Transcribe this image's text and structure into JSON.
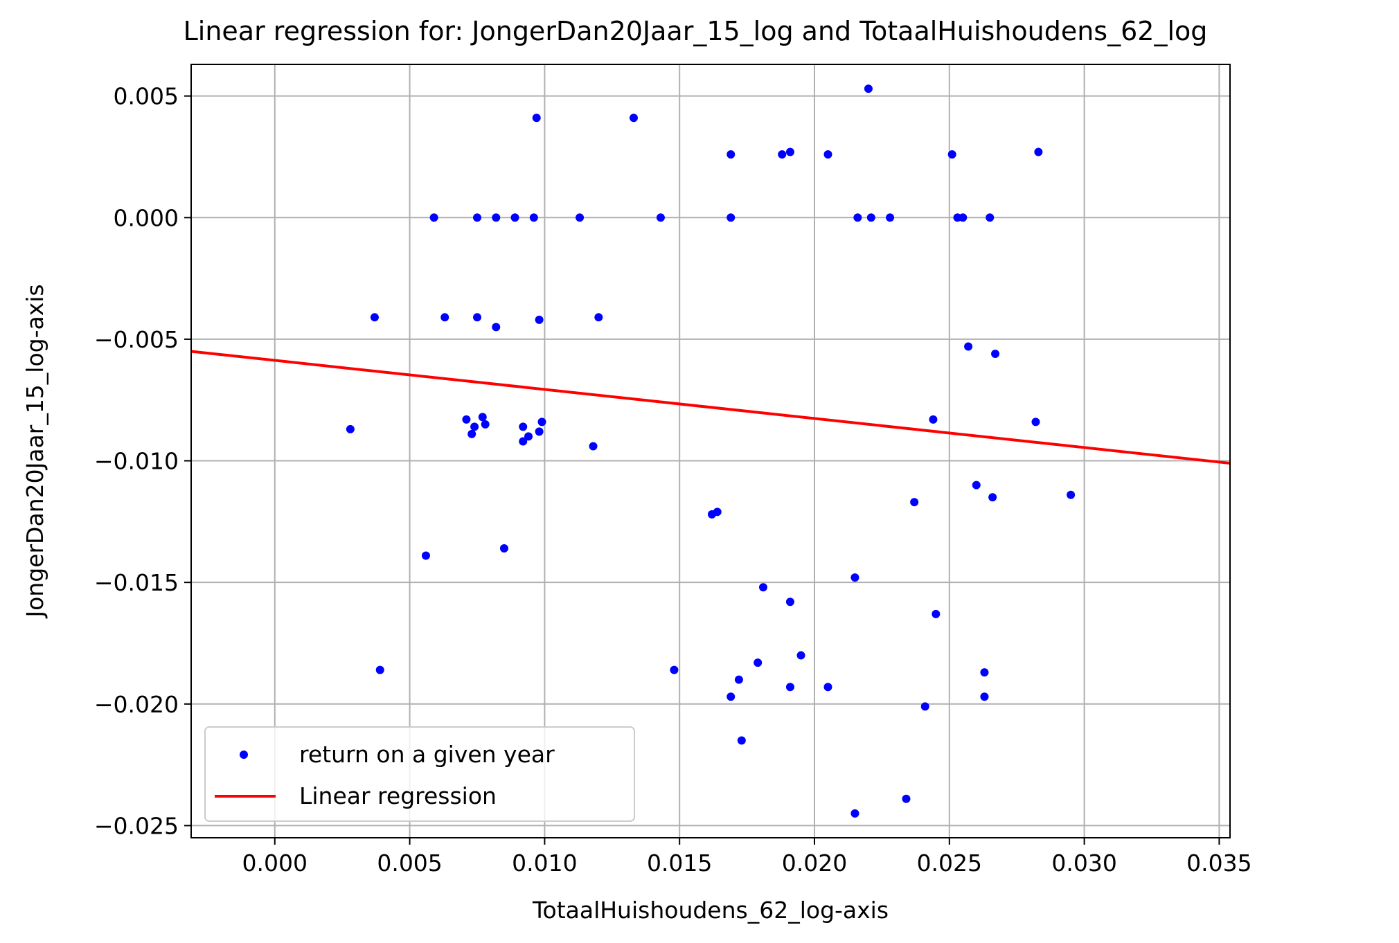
{
  "chart_data": {
    "type": "scatter",
    "title": "Linear regression for: JongerDan20Jaar_15_log and TotaalHuishoudens_62_log",
    "xlabel": "TotaalHuishoudens_62_log-axis",
    "ylabel": "JongerDan20Jaar_15_log-axis",
    "xlim": [
      -0.0031,
      0.0354
    ],
    "ylim": [
      -0.0255,
      0.0063
    ],
    "xticks": [
      0.0,
      0.005,
      0.01,
      0.015,
      0.02,
      0.025,
      0.03,
      0.035
    ],
    "xtick_labels": [
      "0.000",
      "0.005",
      "0.010",
      "0.015",
      "0.020",
      "0.025",
      "0.030",
      "0.035"
    ],
    "yticks": [
      0.005,
      0.0,
      -0.005,
      -0.01,
      -0.015,
      -0.02,
      -0.025
    ],
    "ytick_labels": [
      "0.005",
      "0.000",
      "−0.005",
      "−0.010",
      "−0.015",
      "−0.020",
      "−0.025"
    ],
    "grid": true,
    "legend_position": "lower-left",
    "series": [
      {
        "name": "return on a given year",
        "kind": "scatter",
        "color": "#0000ff",
        "points": [
          [
            0.0028,
            -0.0087
          ],
          [
            0.0037,
            -0.0041
          ],
          [
            0.0039,
            -0.0186
          ],
          [
            0.0056,
            -0.0139
          ],
          [
            0.0059,
            0.0
          ],
          [
            0.0063,
            -0.0041
          ],
          [
            0.0071,
            -0.0083
          ],
          [
            0.0073,
            -0.0089
          ],
          [
            0.0074,
            -0.0086
          ],
          [
            0.0075,
            0.0
          ],
          [
            0.0075,
            -0.0041
          ],
          [
            0.0077,
            -0.0082
          ],
          [
            0.0078,
            -0.0085
          ],
          [
            0.0082,
            -0.0045
          ],
          [
            0.0082,
            0.0
          ],
          [
            0.0085,
            -0.0136
          ],
          [
            0.0089,
            0.0
          ],
          [
            0.0092,
            -0.0092
          ],
          [
            0.0092,
            -0.0086
          ],
          [
            0.0094,
            -0.009
          ],
          [
            0.0096,
            0.0
          ],
          [
            0.0097,
            0.0041
          ],
          [
            0.0098,
            -0.0042
          ],
          [
            0.0098,
            -0.0088
          ],
          [
            0.0099,
            -0.0084
          ],
          [
            0.0113,
            0.0
          ],
          [
            0.0118,
            -0.0094
          ],
          [
            0.012,
            -0.0041
          ],
          [
            0.0133,
            0.0041
          ],
          [
            0.0143,
            0.0
          ],
          [
            0.0148,
            -0.0186
          ],
          [
            0.0162,
            -0.0122
          ],
          [
            0.0164,
            -0.0121
          ],
          [
            0.0169,
            -0.0197
          ],
          [
            0.0169,
            0.0026
          ],
          [
            0.0169,
            0.0
          ],
          [
            0.0172,
            -0.019
          ],
          [
            0.0173,
            -0.0215
          ],
          [
            0.0179,
            -0.0183
          ],
          [
            0.0181,
            -0.0152
          ],
          [
            0.0188,
            0.0026
          ],
          [
            0.0191,
            0.0027
          ],
          [
            0.0191,
            -0.0158
          ],
          [
            0.0191,
            -0.0193
          ],
          [
            0.0195,
            -0.018
          ],
          [
            0.0205,
            0.0026
          ],
          [
            0.0205,
            -0.0193
          ],
          [
            0.0215,
            -0.0148
          ],
          [
            0.0215,
            -0.0245
          ],
          [
            0.0216,
            0.0
          ],
          [
            0.022,
            0.0053
          ],
          [
            0.0221,
            0.0
          ],
          [
            0.0228,
            0.0
          ],
          [
            0.0234,
            -0.0239
          ],
          [
            0.0237,
            -0.0117
          ],
          [
            0.0241,
            -0.0201
          ],
          [
            0.0244,
            -0.0083
          ],
          [
            0.0245,
            -0.0163
          ],
          [
            0.0251,
            0.0026
          ],
          [
            0.0253,
            0.0
          ],
          [
            0.0255,
            0.0
          ],
          [
            0.0257,
            -0.0053
          ],
          [
            0.026,
            -0.011
          ],
          [
            0.0263,
            -0.0187
          ],
          [
            0.0263,
            -0.0197
          ],
          [
            0.0265,
            0.0
          ],
          [
            0.0266,
            -0.0115
          ],
          [
            0.0267,
            -0.0056
          ],
          [
            0.0282,
            -0.0084
          ],
          [
            0.0283,
            0.0027
          ],
          [
            0.0295,
            -0.0114
          ]
        ]
      },
      {
        "name": "Linear regression",
        "kind": "line",
        "color": "#ff0000",
        "points": [
          [
            -0.0031,
            -0.0055
          ],
          [
            0.0354,
            -0.0101
          ]
        ]
      }
    ]
  }
}
